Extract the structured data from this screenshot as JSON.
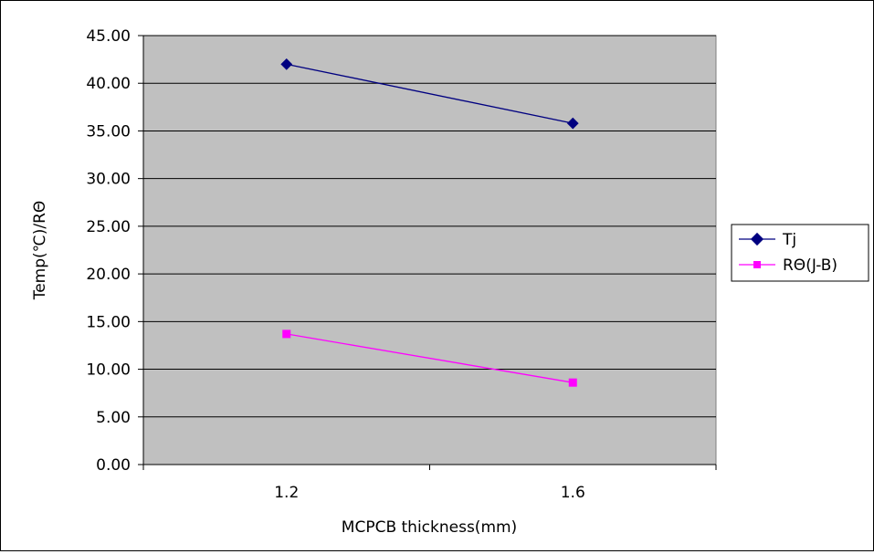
{
  "chart_data": {
    "type": "line",
    "x": [
      "1.2",
      "1.6"
    ],
    "xlabel": "MCPCB thickness(mm)",
    "ylabel": "Temp(℃)/RΘ",
    "ylim": [
      0,
      45
    ],
    "yticks": [
      "0.00",
      "5.00",
      "10.00",
      "15.00",
      "20.00",
      "25.00",
      "30.00",
      "35.00",
      "40.00",
      "45.00"
    ],
    "grid": true,
    "legend_position": "right",
    "plot_background": "#c0c0c0",
    "series": [
      {
        "name": "Tj",
        "values": [
          42.0,
          35.8
        ],
        "color": "#000080",
        "marker": "diamond"
      },
      {
        "name": "RΘ(J-B)",
        "values": [
          13.7,
          8.6
        ],
        "color": "#ff00ff",
        "marker": "square"
      }
    ]
  }
}
